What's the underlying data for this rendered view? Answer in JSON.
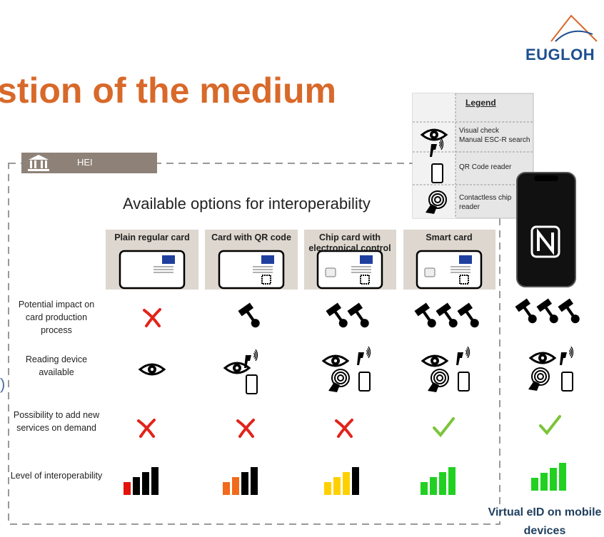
{
  "logo": "EUGLOH",
  "title": "stion of the medium",
  "side_mark": ")",
  "hei_label": "HEI",
  "heading": "Available options for interoperability",
  "legend": {
    "title": "Legend",
    "items": [
      [
        "Visual check",
        "Manual ESC-R search"
      ],
      [
        "QR Code reader"
      ],
      [
        "Contactless chip reader"
      ]
    ]
  },
  "options": [
    "Plain regular card",
    "Card with QR code",
    "Chip card with electronical control",
    "Smart card"
  ],
  "criteria": [
    "Potential impact on card production process",
    "Reading device available",
    "Possibility to add new services on demand",
    "Level of interoperability"
  ],
  "mobile_label": "Virtual eID on mobile devices"
}
